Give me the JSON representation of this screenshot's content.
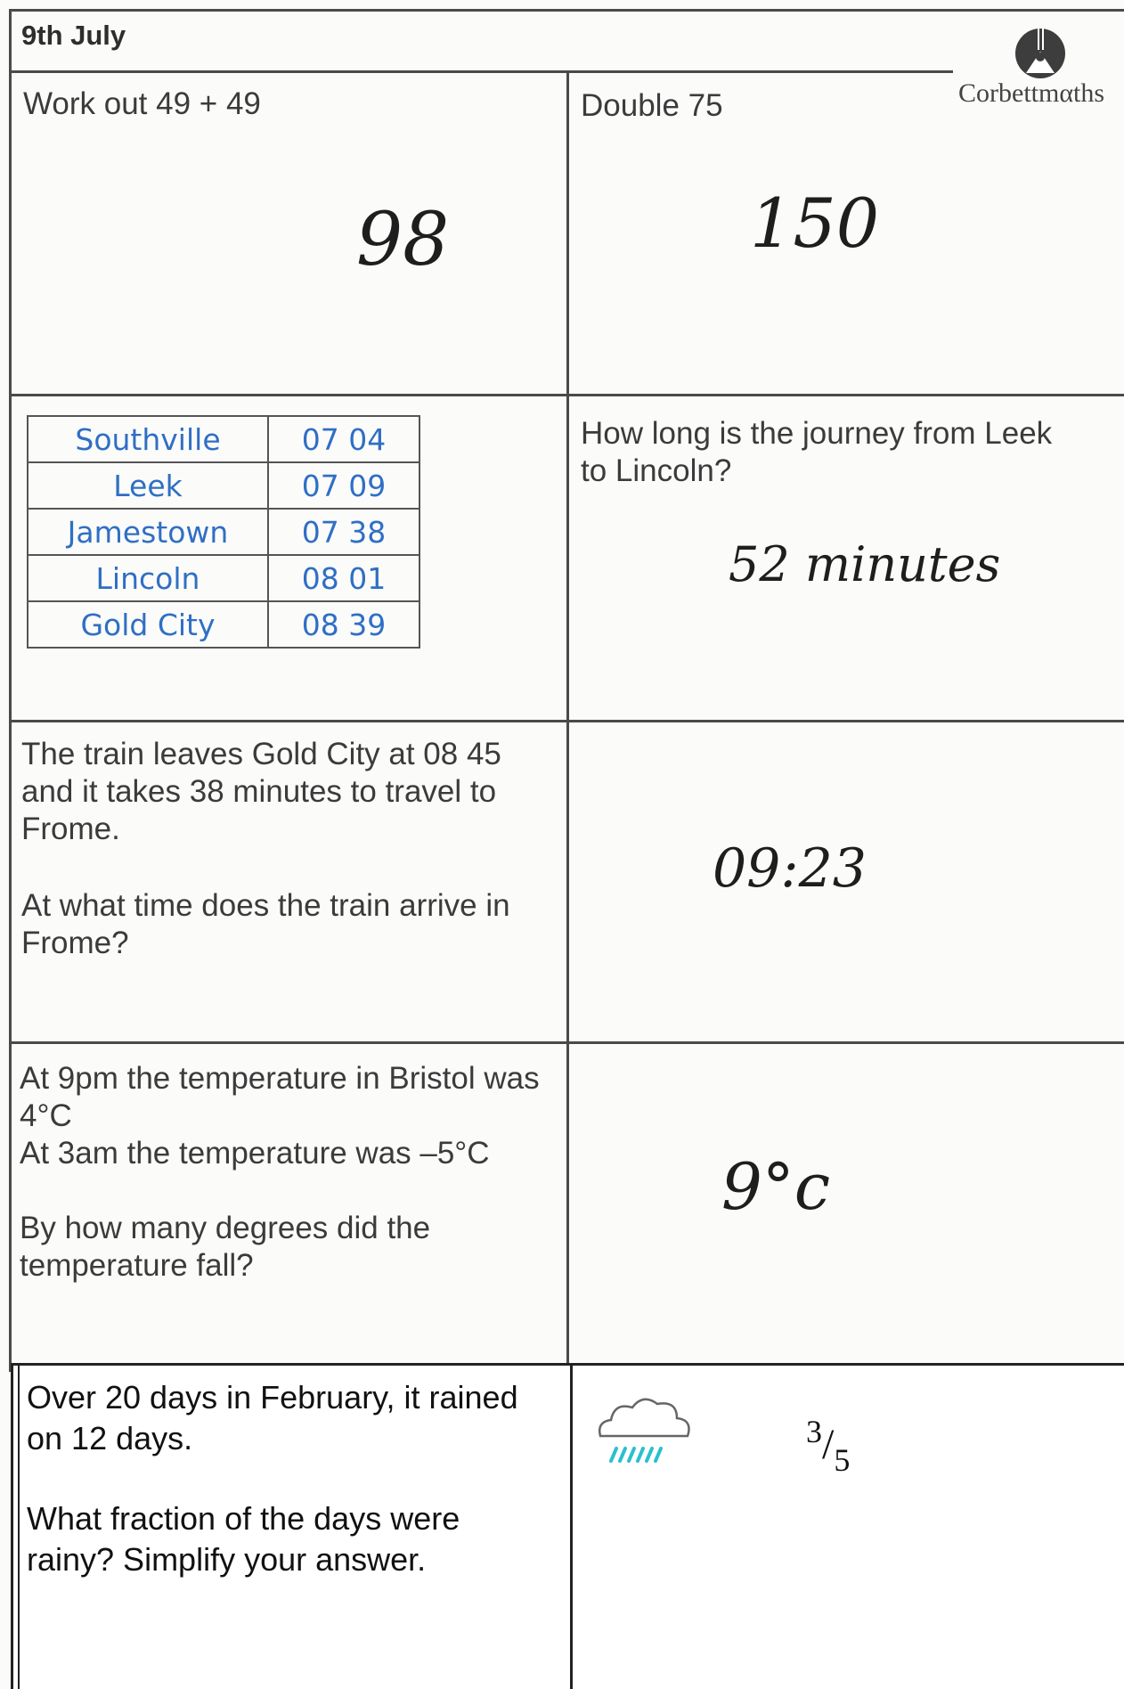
{
  "header": {
    "date": "9th July",
    "brand": "Corbettmαths",
    "brand_icon": "corbettmaths-logo-icon"
  },
  "q1": {
    "question": "Work out 49 + 49",
    "answer": "98"
  },
  "q2": {
    "question": "Double 75",
    "answer": "150"
  },
  "timetable": {
    "rows": [
      {
        "station": "Southville",
        "time": "07 04"
      },
      {
        "station": "Leek",
        "time": "07 09"
      },
      {
        "station": "Jamestown",
        "time": "07 38"
      },
      {
        "station": "Lincoln",
        "time": "08 01"
      },
      {
        "station": "Gold City",
        "time": "08 39"
      }
    ],
    "text_color": "#2f6fc4"
  },
  "q3": {
    "question_line1": "How long is the journey from Leek",
    "question_line2": "to Lincoln?",
    "answer": "52 minutes"
  },
  "q4": {
    "line1": "The train leaves Gold City at 08 45",
    "line2": "and it takes 38 minutes to travel to",
    "line3": "Frome.",
    "line4": "At what time does the train arrive in",
    "line5": "Frome?",
    "answer": "09:23"
  },
  "q5": {
    "line1": "At 9pm the temperature in Bristol was",
    "line2": "4°C",
    "line3": "At 3am the temperature was –5°C",
    "line4": "By how many degrees did the",
    "line5": "temperature fall?",
    "answer": "9°c"
  },
  "q6": {
    "line1": "Over 20 days in February, it rained",
    "line2": "on 12 days.",
    "line3": "What fraction of the days were",
    "line4": "rainy? Simplify your answer.",
    "answer_numerator": "3",
    "answer_denominator": "5",
    "icon": "rain-cloud-icon",
    "rain_color": "#2bbfcf"
  }
}
